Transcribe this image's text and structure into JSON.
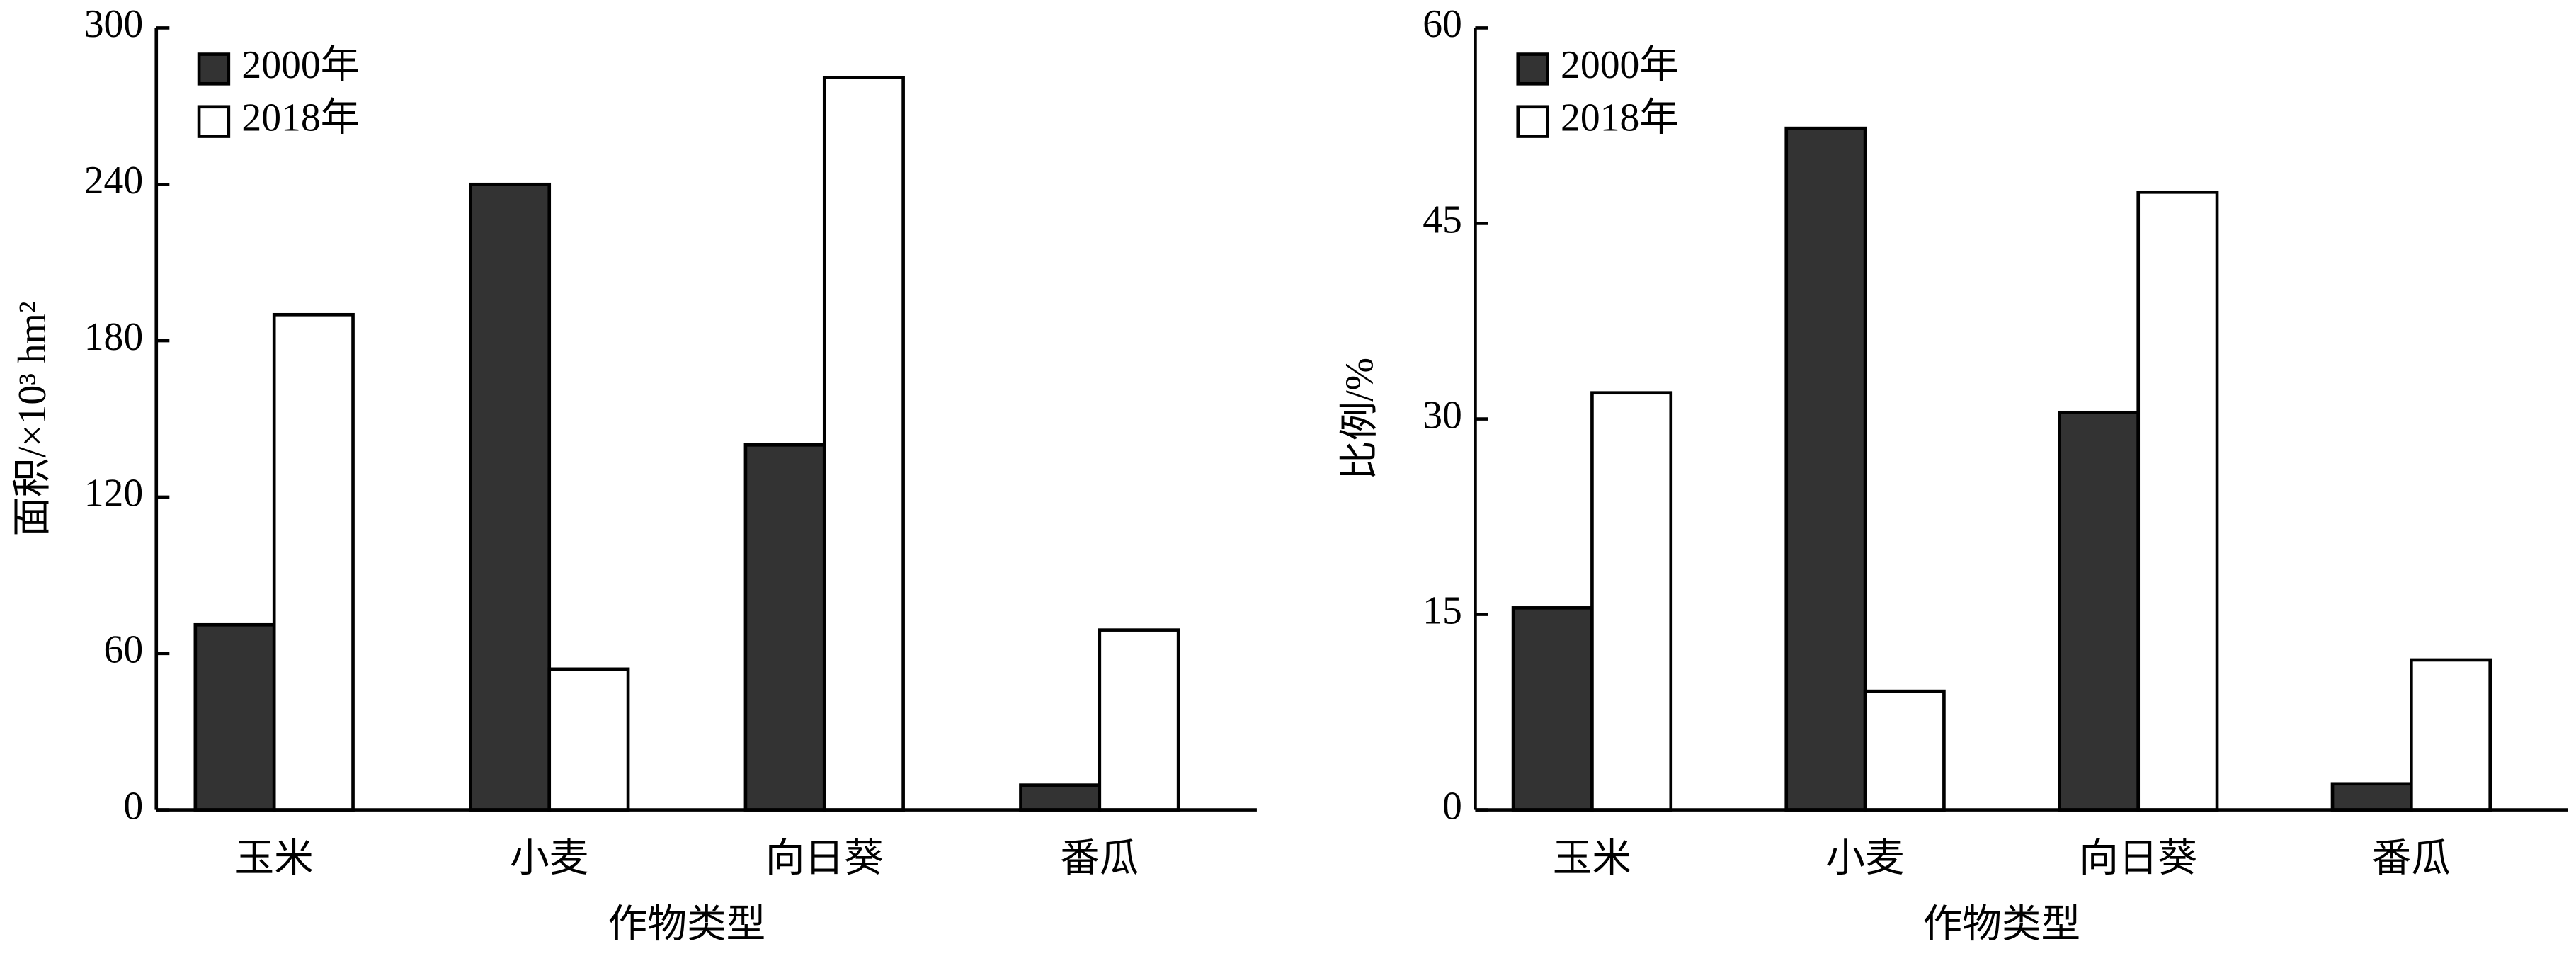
{
  "chart_data": [
    {
      "type": "bar",
      "xlabel": "作物类型",
      "ylabel": "面积/×10³ hm²",
      "categories": [
        "玉米",
        "小麦",
        "向日葵",
        "番瓜"
      ],
      "series": [
        {
          "name": "2000年",
          "color": "#333333",
          "values": [
            71,
            240,
            140,
            9.5
          ]
        },
        {
          "name": "2018年",
          "color": "#ffffff",
          "values": [
            190,
            54,
            281,
            69
          ]
        }
      ],
      "ylim": [
        0,
        300
      ],
      "yticks": [
        0,
        60,
        120,
        180,
        240,
        300
      ],
      "legend": "upper left"
    },
    {
      "type": "bar",
      "xlabel": "作物类型",
      "ylabel": "比例/%",
      "categories": [
        "玉米",
        "小麦",
        "向日葵",
        "番瓜"
      ],
      "series": [
        {
          "name": "2000年",
          "color": "#333333",
          "values": [
            15.5,
            52.3,
            30.5,
            2.0
          ]
        },
        {
          "name": "2018年",
          "color": "#ffffff",
          "values": [
            32.0,
            9.1,
            47.4,
            11.5
          ]
        }
      ],
      "ylim": [
        0,
        60
      ],
      "yticks": [
        0,
        15,
        30,
        45,
        60
      ],
      "legend": "upper left"
    }
  ]
}
